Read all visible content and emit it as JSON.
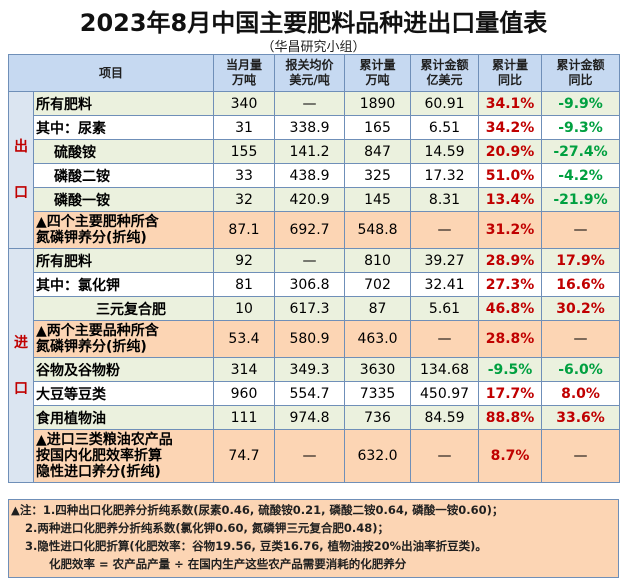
{
  "title": "2023年8月中国主要肥料品种进出口量值表",
  "subtitle": "（华昌研究小组）",
  "headers": {
    "item": "项目",
    "qty_line1": "当月量",
    "qty_line2": "万吨",
    "price_line1": "报关均价",
    "price_line2": "美元/吨",
    "cum_line1": "累计量",
    "cum_line2": "万吨",
    "amt_line1": "累计金额",
    "amt_line2": "亿美元",
    "yoy_line1": "累计量",
    "yoy_line2": "同比",
    "amt_yoy_line1": "累计金额",
    "amt_yoy_line2": "同比"
  },
  "export_label": "出\n口",
  "import_label": "进\n口",
  "export_rows": [
    {
      "item": "所有肥料",
      "qty": "340",
      "price": "—",
      "cum": "1890",
      "amt": "60.91",
      "yoy": "34.1%",
      "amt_yoy": "-9.9%"
    },
    {
      "item": "其中：尿素",
      "qty": "31",
      "price": "338.9",
      "cum": "165",
      "amt": "6.51",
      "yoy": "34.2%",
      "amt_yoy": "-9.3%"
    },
    {
      "item": "硫酸铵",
      "qty": "155",
      "price": "141.2",
      "cum": "847",
      "amt": "14.59",
      "yoy": "20.9%",
      "amt_yoy": "-27.4%"
    },
    {
      "item": "磷酸二铵",
      "qty": "33",
      "price": "438.9",
      "cum": "325",
      "amt": "17.32",
      "yoy": "51.0%",
      "amt_yoy": "-4.2%"
    },
    {
      "item": "磷酸一铵",
      "qty": "32",
      "price": "420.9",
      "cum": "145",
      "amt": "8.31",
      "yoy": "13.4%",
      "amt_yoy": "-21.9%"
    },
    {
      "item_line1": "▲四个主要肥种所含",
      "item_line2": "氮磷钾养分(折纯)",
      "qty": "87.1",
      "price": "692.7",
      "cum": "548.8",
      "amt": "—",
      "yoy": "31.2%",
      "amt_yoy": "—"
    }
  ],
  "import_rows": [
    {
      "item": "所有肥料",
      "qty": "92",
      "price": "—",
      "cum": "810",
      "amt": "39.27",
      "yoy": "28.9%",
      "amt_yoy": "17.9%"
    },
    {
      "item": "其中：氯化钾",
      "qty": "81",
      "price": "306.8",
      "cum": "702",
      "amt": "32.41",
      "yoy": "27.3%",
      "amt_yoy": "16.6%"
    },
    {
      "item": "三元复合肥",
      "qty": "10",
      "price": "617.3",
      "cum": "87",
      "amt": "5.61",
      "yoy": "46.8%",
      "amt_yoy": "30.2%"
    },
    {
      "item_line1": "▲两个主要品种所含",
      "item_line2": "氮磷钾养分(折纯)",
      "qty": "53.4",
      "price": "580.9",
      "cum": "463.0",
      "amt": "—",
      "yoy": "28.8%",
      "amt_yoy": "—"
    },
    {
      "item": "谷物及谷物粉",
      "qty": "314",
      "price": "349.3",
      "cum": "3630",
      "amt": "134.68",
      "yoy": "-9.5%",
      "amt_yoy": "-6.0%"
    },
    {
      "item": "大豆等豆类",
      "qty": "960",
      "price": "554.7",
      "cum": "7335",
      "amt": "450.97",
      "yoy": "17.7%",
      "amt_yoy": "8.0%"
    },
    {
      "item": "食用植物油",
      "qty": "111",
      "price": "974.8",
      "cum": "736",
      "amt": "84.59",
      "yoy": "88.8%",
      "amt_yoy": "33.6%"
    },
    {
      "item_line1": "▲进口三类粮油农产品",
      "item_line2": "按国内化肥效率折算",
      "item_line3": "隐性进口养分(折纯)",
      "qty": "74.7",
      "price": "—",
      "cum": "632.0",
      "amt": "—",
      "yoy": "8.7%",
      "amt_yoy": "—"
    }
  ],
  "notes": {
    "n1": "▲注：1.四种出口化肥养分折纯系数(尿素0.46, 硫酸铵0.21, 磷酸二铵0.64, 磷酸一铵0.60)；",
    "n2": "2.两种进口化肥养分折纯系数(氯化钾0.60, 氮磷钾三元复合肥0.48)；",
    "n3": "3.隐性进口化肥折算(化肥效率：谷物19.56, 豆类16.76, 植物油按20%出油率折豆类)。",
    "n4": "化肥效率 = 农产品产量 ÷ 在国内生产这些农产品需要消耗的化肥养分"
  },
  "colors": {
    "header_bg": "#c6d9f1",
    "green_row": "#ebf1de",
    "orange_row": "#fcd5b4",
    "red_text": "#c00000",
    "green_text": "#00a040"
  }
}
